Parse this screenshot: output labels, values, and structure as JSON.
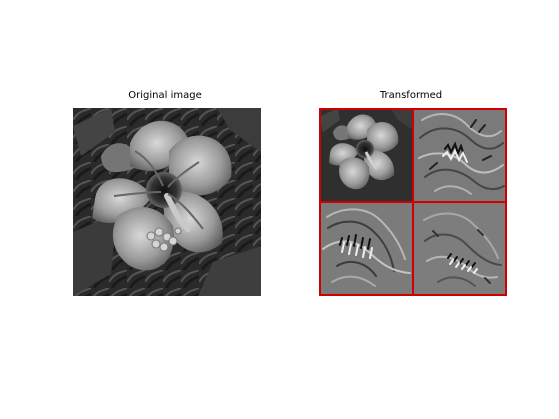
{
  "figure": {
    "left_title": "Original image",
    "right_title": "Transformed"
  },
  "colors": {
    "background": "#ffffff",
    "grid_lines": "#d00000",
    "image_base": "#7c7c7c"
  },
  "icons": {
    "original_image": "hibiscus-grayscale-image-icon",
    "transformed_image": "wavelet-transformed-image-icon"
  }
}
